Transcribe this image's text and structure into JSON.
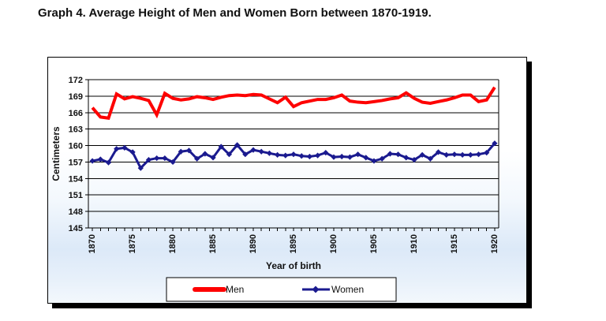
{
  "title": "Graph 4. Average Height of Men and Women Born between 1870-1919.",
  "chart_data": {
    "type": "line",
    "title": "Graph 4. Average Height of Men and Women Born between 1870-1919.",
    "xlabel": "Year of birth",
    "ylabel": "Centimeters",
    "ylim": [
      145,
      172
    ],
    "ytick_labels": [
      145,
      148,
      151,
      154,
      157,
      160,
      163,
      166,
      169,
      172
    ],
    "xtick_labels": [
      1870,
      1875,
      1880,
      1885,
      1890,
      1895,
      1900,
      1905,
      1910,
      1915,
      1920
    ],
    "grid": "horizontal-black",
    "legend_position": "bottom",
    "x": [
      1870,
      1871,
      1872,
      1873,
      1874,
      1875,
      1876,
      1877,
      1878,
      1879,
      1880,
      1881,
      1882,
      1883,
      1884,
      1885,
      1886,
      1887,
      1888,
      1889,
      1890,
      1891,
      1892,
      1893,
      1894,
      1895,
      1896,
      1897,
      1898,
      1899,
      1900,
      1901,
      1902,
      1903,
      1904,
      1905,
      1906,
      1907,
      1908,
      1909,
      1910,
      1911,
      1912,
      1913,
      1914,
      1915,
      1916,
      1917,
      1918,
      1919,
      1920
    ],
    "series": [
      {
        "name": "Men",
        "color": "#fe0000",
        "marker": "none",
        "line_width": 4,
        "values": [
          166.9,
          165.2,
          165.0,
          169.4,
          168.5,
          168.9,
          168.6,
          168.2,
          165.6,
          169.5,
          168.6,
          168.3,
          168.5,
          168.9,
          168.7,
          168.4,
          168.8,
          169.1,
          169.2,
          169.1,
          169.3,
          169.2,
          168.5,
          167.8,
          168.8,
          167.1,
          167.8,
          168.1,
          168.4,
          168.4,
          168.7,
          169.2,
          168.1,
          167.9,
          167.8,
          168.0,
          168.2,
          168.5,
          168.7,
          169.6,
          168.6,
          167.9,
          167.7,
          168.0,
          168.3,
          168.7,
          169.2,
          169.2,
          168.0,
          168.3,
          170.6
        ]
      },
      {
        "name": "Women",
        "color": "#1a1a8f",
        "marker": "diamond",
        "line_width": 3,
        "values": [
          157.2,
          157.5,
          156.9,
          159.4,
          159.6,
          158.8,
          155.9,
          157.4,
          157.7,
          157.7,
          157.0,
          158.9,
          159.1,
          157.6,
          158.5,
          157.8,
          159.8,
          158.4,
          160.1,
          158.4,
          159.2,
          158.9,
          158.6,
          158.3,
          158.2,
          158.4,
          158.1,
          158.0,
          158.2,
          158.7,
          157.9,
          158.0,
          157.9,
          158.4,
          157.8,
          157.2,
          157.6,
          158.5,
          158.4,
          157.8,
          157.4,
          158.3,
          157.6,
          158.8,
          158.3,
          158.4,
          158.3,
          158.3,
          158.4,
          158.7,
          160.4
        ]
      }
    ]
  }
}
